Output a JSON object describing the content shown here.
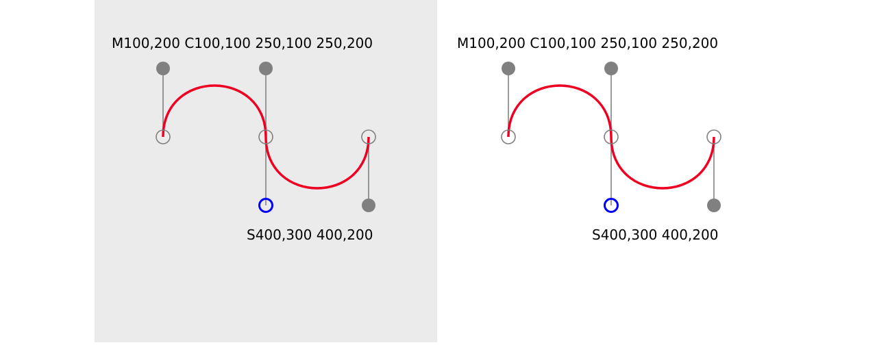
{
  "colors": {
    "left_background": "#ebebeb",
    "right_background": "#ffffff",
    "curve": "#ee0022",
    "handle": "#808080",
    "reflected_control": "#0000ff"
  },
  "panels": [
    {
      "path_label": "M100,200 C100,100 250,100 250,200",
      "smooth_label": "S400,300 400,200"
    },
    {
      "path_label": "M100,200 C100,100 250,100 250,200",
      "smooth_label": "S400,300 400,200"
    }
  ]
}
